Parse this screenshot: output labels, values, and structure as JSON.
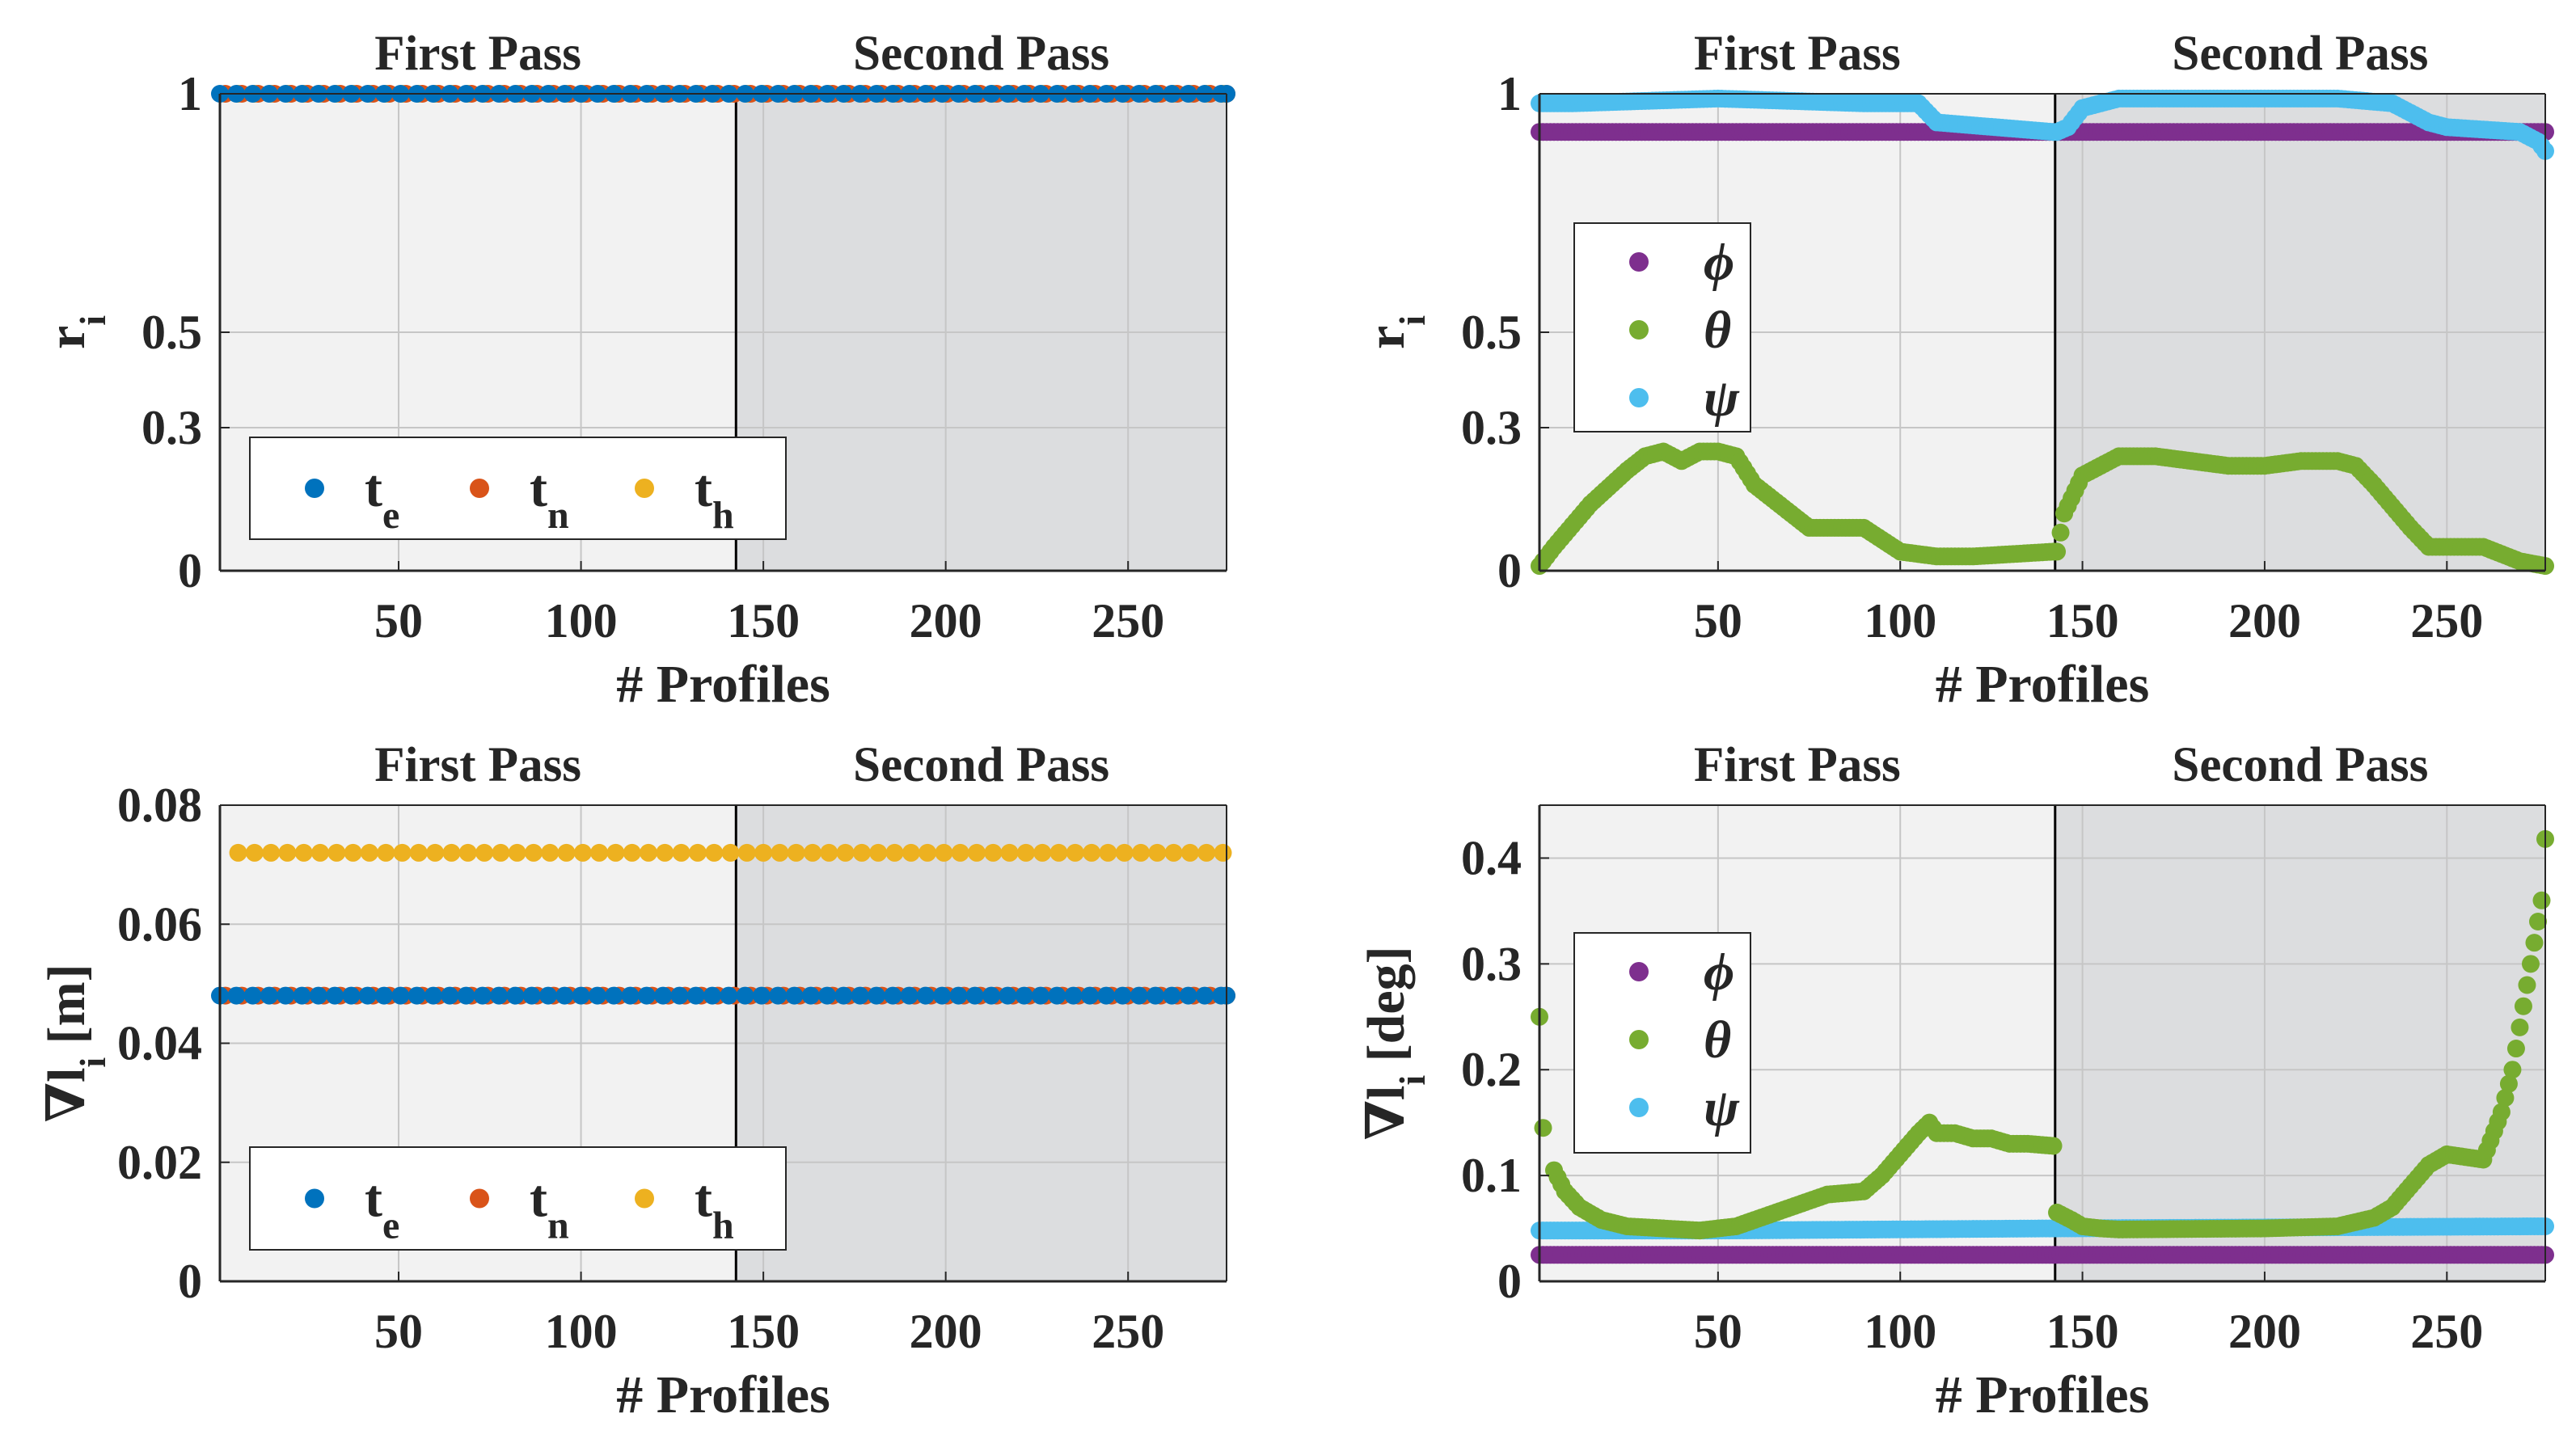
{
  "figure": {
    "regions": [
      "First Pass",
      "Second Pass"
    ],
    "split_at": 142.5,
    "colors": {
      "te": "#0072BD",
      "tn": "#D95319",
      "th": "#EDB120",
      "phi": "#7E2F8E",
      "theta": "#77AC30",
      "psi": "#4DBEEE",
      "first_bg": "#F2F2F2",
      "second_bg": "#DCDDDF"
    }
  },
  "chart_data": [
    {
      "id": "tl",
      "type": "scatter",
      "xlabel": "# Profiles",
      "ylabel": "r",
      "ylabel_sub": "i",
      "xlim": [
        1,
        277
      ],
      "ylim": [
        0,
        1
      ],
      "xticks": [
        50,
        100,
        150,
        200,
        250
      ],
      "yticks": [
        0,
        0.3,
        0.5,
        1
      ],
      "ytick_labels": [
        "0",
        "0.3",
        "0.5",
        "1"
      ],
      "legend": [
        {
          "symbol": "t",
          "sub": "e",
          "key": "te"
        },
        {
          "symbol": "t",
          "sub": "n",
          "key": "tn"
        },
        {
          "symbol": "t",
          "sub": "h",
          "key": "th"
        }
      ],
      "series": [
        {
          "key": "th",
          "kind": "const",
          "value": 1
        },
        {
          "key": "tn",
          "kind": "const",
          "value": 1
        },
        {
          "key": "te",
          "kind": "const",
          "value": 1
        }
      ]
    },
    {
      "id": "tr",
      "type": "scatter",
      "xlabel": "# Profiles",
      "ylabel": "r",
      "ylabel_sub": "i",
      "xlim": [
        1,
        277
      ],
      "ylim": [
        0,
        1
      ],
      "xticks": [
        50,
        100,
        150,
        200,
        250
      ],
      "yticks": [
        0,
        0.3,
        0.5,
        1
      ],
      "ytick_labels": [
        "0",
        "0.3",
        "0.5",
        "1"
      ],
      "legend": [
        {
          "symbol": "ϕ",
          "key": "phi"
        },
        {
          "symbol": "θ",
          "key": "theta"
        },
        {
          "symbol": "ψ",
          "key": "psi"
        }
      ],
      "series": [
        {
          "key": "phi",
          "kind": "knots",
          "x": [
            1,
            277
          ],
          "y": [
            0.92,
            0.92
          ]
        },
        {
          "key": "theta",
          "kind": "knots",
          "x": [
            1,
            5,
            15,
            25,
            30,
            35,
            40,
            45,
            50,
            55,
            60,
            70,
            75,
            90,
            100,
            110,
            120,
            142,
            143,
            145,
            150,
            160,
            170,
            180,
            190,
            200,
            210,
            220,
            225,
            230,
            240,
            245,
            250,
            260,
            270,
            277
          ],
          "y": [
            0.01,
            0.05,
            0.14,
            0.21,
            0.24,
            0.25,
            0.23,
            0.25,
            0.25,
            0.24,
            0.18,
            0.12,
            0.09,
            0.09,
            0.04,
            0.03,
            0.03,
            0.04,
            0.04,
            0.12,
            0.2,
            0.24,
            0.24,
            0.23,
            0.22,
            0.22,
            0.23,
            0.23,
            0.22,
            0.18,
            0.09,
            0.05,
            0.05,
            0.05,
            0.02,
            0.01
          ]
        },
        {
          "key": "psi",
          "kind": "knots",
          "x": [
            1,
            10,
            50,
            90,
            105,
            110,
            142,
            143,
            146,
            150,
            155,
            160,
            180,
            220,
            235,
            240,
            245,
            250,
            270,
            275,
            277
          ],
          "y": [
            0.98,
            0.98,
            0.99,
            0.98,
            0.98,
            0.94,
            0.92,
            0.92,
            0.93,
            0.97,
            0.98,
            0.99,
            0.99,
            0.99,
            0.98,
            0.96,
            0.94,
            0.93,
            0.92,
            0.9,
            0.88
          ]
        }
      ]
    },
    {
      "id": "bl",
      "type": "scatter",
      "xlabel": "# Profiles",
      "ylabel": "∇l",
      "ylabel_sub": "i",
      "ylabel_unit": " [m]",
      "xlim": [
        1,
        277
      ],
      "ylim": [
        0,
        0.08
      ],
      "xticks": [
        50,
        100,
        150,
        200,
        250
      ],
      "yticks": [
        0,
        0.02,
        0.04,
        0.06,
        0.08
      ],
      "ytick_labels": [
        "0",
        "0.02",
        "0.04",
        "0.06",
        "0.08"
      ],
      "legend": [
        {
          "symbol": "t",
          "sub": "e",
          "key": "te"
        },
        {
          "symbol": "t",
          "sub": "n",
          "key": "tn"
        },
        {
          "symbol": "t",
          "sub": "h",
          "key": "th"
        }
      ],
      "series": [
        {
          "key": "th",
          "kind": "const",
          "value": 0.072
        },
        {
          "key": "tn",
          "kind": "const",
          "value": 0.048
        },
        {
          "key": "te",
          "kind": "const",
          "value": 0.048
        }
      ]
    },
    {
      "id": "br",
      "type": "scatter",
      "xlabel": "# Profiles",
      "ylabel": "∇l",
      "ylabel_sub": "i",
      "ylabel_unit": " [deg]",
      "xlim": [
        1,
        277
      ],
      "ylim": [
        0,
        0.45
      ],
      "xticks": [
        50,
        100,
        150,
        200,
        250
      ],
      "yticks": [
        0,
        0.1,
        0.2,
        0.3,
        0.4
      ],
      "ytick_labels": [
        "0",
        "0.1",
        "0.2",
        "0.3",
        "0.4"
      ],
      "legend": [
        {
          "symbol": "ϕ",
          "key": "phi"
        },
        {
          "symbol": "θ",
          "key": "theta"
        },
        {
          "symbol": "ψ",
          "key": "psi"
        }
      ],
      "series": [
        {
          "key": "phi",
          "kind": "knots",
          "x": [
            1,
            277
          ],
          "y": [
            0.025,
            0.025
          ]
        },
        {
          "key": "psi",
          "kind": "knots",
          "x": [
            1,
            50,
            142,
            277
          ],
          "y": [
            0.048,
            0.048,
            0.05,
            0.052
          ]
        },
        {
          "key": "theta",
          "kind": "knots",
          "x": [
            5,
            8,
            12,
            18,
            25,
            35,
            45,
            50,
            55,
            60,
            70,
            80,
            90,
            95,
            100,
            105,
            108,
            110,
            115,
            120,
            125,
            130,
            135,
            142,
            143,
            147,
            150,
            155,
            160,
            200,
            220,
            230,
            235,
            240,
            245,
            250,
            260,
            265,
            268,
            270,
            272,
            274,
            276
          ],
          "y": [
            0.105,
            0.085,
            0.07,
            0.058,
            0.052,
            0.05,
            0.048,
            0.05,
            0.052,
            0.058,
            0.07,
            0.082,
            0.085,
            0.1,
            0.12,
            0.14,
            0.15,
            0.14,
            0.14,
            0.135,
            0.135,
            0.13,
            0.13,
            0.128,
            0.065,
            0.058,
            0.052,
            0.05,
            0.049,
            0.05,
            0.052,
            0.06,
            0.07,
            0.09,
            0.11,
            0.12,
            0.115,
            0.16,
            0.2,
            0.24,
            0.28,
            0.32,
            0.36
          ],
          "outliers": [
            [
              1,
              0.25
            ],
            [
              2,
              0.145
            ],
            [
              277,
              0.418
            ]
          ]
        }
      ]
    }
  ]
}
